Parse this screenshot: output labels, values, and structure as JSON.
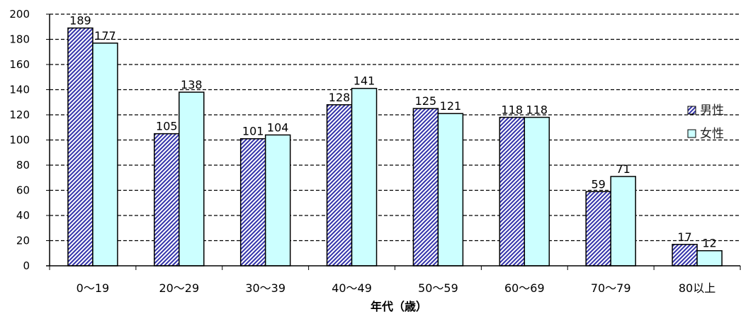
{
  "chart_data": {
    "type": "bar",
    "categories": [
      "0～19",
      "20～29",
      "30～39",
      "40～49",
      "50～59",
      "60～69",
      "70～79",
      "80以上"
    ],
    "series": [
      {
        "name": "男性",
        "values": [
          189,
          105,
          101,
          128,
          125,
          118,
          59,
          17
        ],
        "color": "#3333aa",
        "fill": "hatched"
      },
      {
        "name": "女性",
        "values": [
          177,
          138,
          104,
          141,
          121,
          118,
          71,
          12
        ],
        "color": "#ccffff"
      }
    ],
    "title": "",
    "xlabel": "年代（歳）",
    "ylabel": "",
    "ylim": [
      0,
      200
    ],
    "yticks": [
      0,
      20,
      40,
      60,
      80,
      100,
      120,
      140,
      160,
      180,
      200
    ],
    "grid": true,
    "data_labels": true,
    "legend_position": "right"
  }
}
